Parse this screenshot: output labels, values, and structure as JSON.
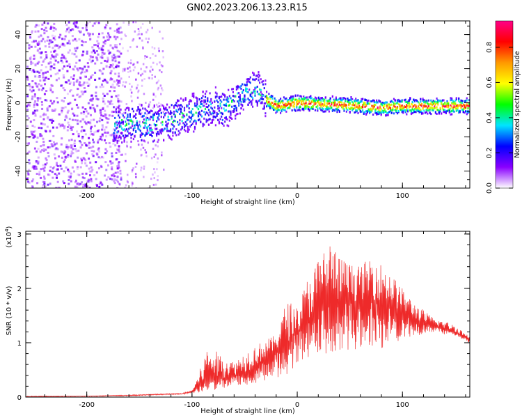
{
  "title": "GN02.2023.206.13.23.R15",
  "colors": {
    "snr_line": "#ee2a2a",
    "axis": "#000000",
    "background": "#ffffff"
  },
  "chart_data": [
    {
      "type": "heatmap",
      "xlabel": "Height of straight line (km)",
      "ylabel": "Frequency (Hz)",
      "xlim": [
        -258,
        164
      ],
      "ylim": [
        -50,
        48
      ],
      "x_ticks": [
        -200,
        -100,
        0,
        100
      ],
      "y_ticks": [
        -40,
        -20,
        0,
        20,
        40
      ],
      "colorbar": {
        "label": "Normalized spectral amplitude",
        "range": [
          0,
          0.95
        ],
        "ticks": [
          0.0,
          0.2,
          0.4,
          0.6,
          0.8
        ],
        "tick_labels": [
          "0.0",
          "0.2",
          "0.4",
          "0.6",
          "0.8"
        ],
        "colormap": [
          "#ffffff",
          "#8a00ff",
          "#0000ff",
          "#00e5ff",
          "#00ff00",
          "#ffff00",
          "#ff9900",
          "#ff0000",
          "#ff0088"
        ]
      },
      "ridge": {
        "x": [
          -175,
          -160,
          -140,
          -120,
          -100,
          -80,
          -70,
          -55,
          -40,
          -30,
          -20,
          0,
          20,
          40,
          60,
          80,
          100,
          120,
          164
        ],
        "y": [
          -12,
          -12,
          -13,
          -10,
          -6,
          -2,
          -4,
          4,
          8,
          2,
          -2,
          0,
          -1,
          -1,
          -2,
          -3,
          -2,
          -2,
          -2
        ]
      }
    },
    {
      "type": "line",
      "xlabel": "Height of straight line (km)",
      "ylabel": "SNR (10 * v/v)",
      "y_multiplier": "(x10",
      "y_multiplier_exp": "4",
      "y_multiplier_close": ")",
      "xlim": [
        -258,
        164
      ],
      "ylim": [
        0,
        3.05
      ],
      "x_ticks": [
        -200,
        -100,
        0,
        100
      ],
      "y_ticks": [
        0,
        1,
        2,
        3
      ],
      "envelope": {
        "x": [
          -258,
          -200,
          -160,
          -130,
          -110,
          -100,
          -95,
          -85,
          -70,
          -60,
          -50,
          -40,
          -30,
          -20,
          -10,
          0,
          10,
          20,
          30,
          40,
          50,
          60,
          70,
          80,
          90,
          100,
          110,
          120,
          130,
          140,
          150,
          164
        ],
        "upper": [
          0.02,
          0.02,
          0.04,
          0.06,
          0.07,
          0.12,
          0.35,
          0.95,
          0.75,
          0.65,
          0.82,
          0.95,
          1.05,
          1.15,
          1.8,
          1.65,
          2.2,
          2.55,
          2.95,
          2.6,
          2.45,
          2.4,
          2.6,
          2.45,
          2.25,
          2.0,
          1.75,
          1.6,
          1.45,
          1.4,
          1.32,
          1.12
        ],
        "mean": [
          0.01,
          0.02,
          0.03,
          0.05,
          0.06,
          0.1,
          0.18,
          0.3,
          0.35,
          0.4,
          0.45,
          0.55,
          0.7,
          0.85,
          1.0,
          1.2,
          1.4,
          1.55,
          1.65,
          1.7,
          1.75,
          1.78,
          1.8,
          1.75,
          1.65,
          1.55,
          1.45,
          1.35,
          1.3,
          1.25,
          1.2,
          1.05
        ],
        "lower": [
          0.0,
          0.01,
          0.02,
          0.04,
          0.05,
          0.06,
          0.08,
          0.12,
          0.15,
          0.2,
          0.22,
          0.25,
          0.3,
          0.35,
          0.4,
          0.55,
          0.65,
          0.75,
          0.8,
          0.85,
          0.85,
          0.9,
          0.95,
          0.9,
          1.0,
          1.05,
          1.1,
          1.15,
          1.2,
          1.15,
          1.12,
          1.0
        ]
      }
    }
  ]
}
